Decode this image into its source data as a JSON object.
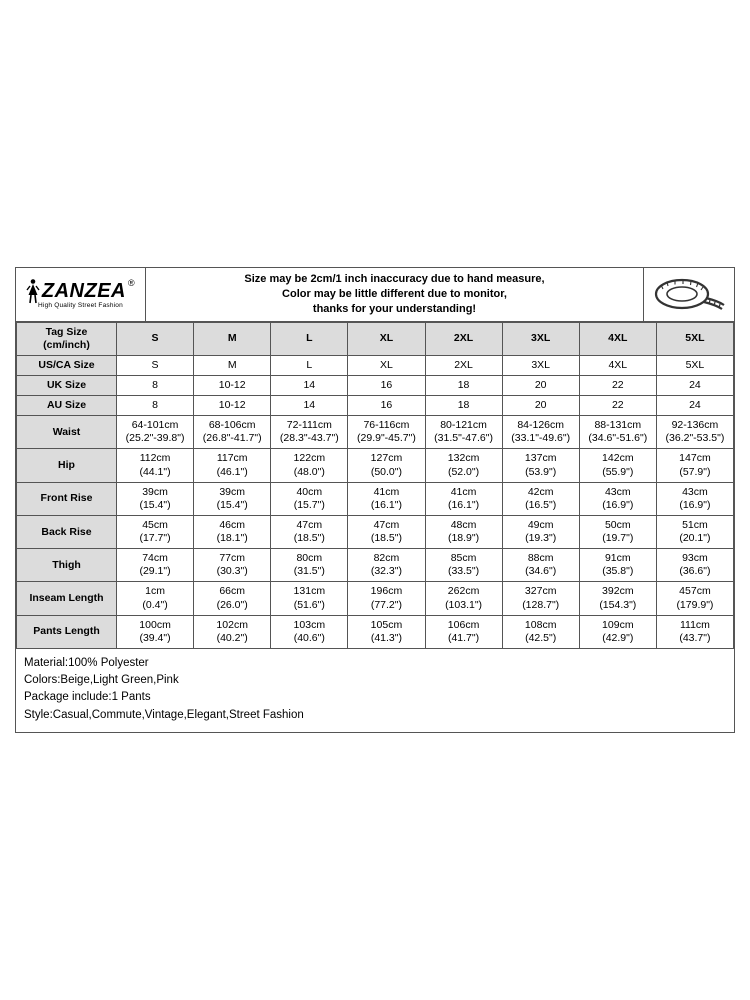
{
  "brand": {
    "name": "ZANZEA",
    "registered": "®",
    "tagline": "High Quality Street Fashion"
  },
  "disclaimer": {
    "line1": "Size may be 2cm/1 inch inaccuracy due to hand measure,",
    "line2": "Color may be little different due to monitor,",
    "line3": "thanks for your understanding!"
  },
  "table": {
    "corner": "Tag Size (cm/inch)",
    "sizes": [
      "S",
      "M",
      "L",
      "XL",
      "2XL",
      "3XL",
      "4XL",
      "5XL"
    ],
    "single_rows": [
      {
        "label": "US/CA Size",
        "values": [
          "S",
          "M",
          "L",
          "XL",
          "2XL",
          "3XL",
          "4XL",
          "5XL"
        ]
      },
      {
        "label": "UK Size",
        "values": [
          "8",
          "10-12",
          "14",
          "16",
          "18",
          "20",
          "22",
          "24"
        ]
      },
      {
        "label": "AU Size",
        "values": [
          "8",
          "10-12",
          "14",
          "16",
          "18",
          "20",
          "22",
          "24"
        ]
      }
    ],
    "dual_rows": [
      {
        "label": "Waist",
        "values": [
          [
            "64-101cm",
            "(25.2\"-39.8\")"
          ],
          [
            "68-106cm",
            "(26.8\"-41.7\")"
          ],
          [
            "72-111cm",
            "(28.3\"-43.7\")"
          ],
          [
            "76-116cm",
            "(29.9\"-45.7\")"
          ],
          [
            "80-121cm",
            "(31.5\"-47.6\")"
          ],
          [
            "84-126cm",
            "(33.1\"-49.6\")"
          ],
          [
            "88-131cm",
            "(34.6\"-51.6\")"
          ],
          [
            "92-136cm",
            "(36.2\"-53.5\")"
          ]
        ]
      },
      {
        "label": "Hip",
        "values": [
          [
            "112cm",
            "(44.1\")"
          ],
          [
            "117cm",
            "(46.1\")"
          ],
          [
            "122cm",
            "(48.0\")"
          ],
          [
            "127cm",
            "(50.0\")"
          ],
          [
            "132cm",
            "(52.0\")"
          ],
          [
            "137cm",
            "(53.9\")"
          ],
          [
            "142cm",
            "(55.9\")"
          ],
          [
            "147cm",
            "(57.9\")"
          ]
        ]
      },
      {
        "label": "Front Rise",
        "values": [
          [
            "39cm",
            "(15.4\")"
          ],
          [
            "39cm",
            "(15.4\")"
          ],
          [
            "40cm",
            "(15.7\")"
          ],
          [
            "41cm",
            "(16.1\")"
          ],
          [
            "41cm",
            "(16.1\")"
          ],
          [
            "42cm",
            "(16.5\")"
          ],
          [
            "43cm",
            "(16.9\")"
          ],
          [
            "43cm",
            "(16.9\")"
          ]
        ]
      },
      {
        "label": "Back Rise",
        "values": [
          [
            "45cm",
            "(17.7\")"
          ],
          [
            "46cm",
            "(18.1\")"
          ],
          [
            "47cm",
            "(18.5\")"
          ],
          [
            "47cm",
            "(18.5\")"
          ],
          [
            "48cm",
            "(18.9\")"
          ],
          [
            "49cm",
            "(19.3\")"
          ],
          [
            "50cm",
            "(19.7\")"
          ],
          [
            "51cm",
            "(20.1\")"
          ]
        ]
      },
      {
        "label": "Thigh",
        "values": [
          [
            "74cm",
            "(29.1\")"
          ],
          [
            "77cm",
            "(30.3\")"
          ],
          [
            "80cm",
            "(31.5\")"
          ],
          [
            "82cm",
            "(32.3\")"
          ],
          [
            "85cm",
            "(33.5\")"
          ],
          [
            "88cm",
            "(34.6\")"
          ],
          [
            "91cm",
            "(35.8\")"
          ],
          [
            "93cm",
            "(36.6\")"
          ]
        ]
      },
      {
        "label": "Inseam Length",
        "values": [
          [
            "1cm",
            "(0.4\")"
          ],
          [
            "66cm",
            "(26.0\")"
          ],
          [
            "131cm",
            "(51.6\")"
          ],
          [
            "196cm",
            "(77.2\")"
          ],
          [
            "262cm",
            "(103.1\")"
          ],
          [
            "327cm",
            "(128.7\")"
          ],
          [
            "392cm",
            "(154.3\")"
          ],
          [
            "457cm",
            "(179.9\")"
          ]
        ]
      },
      {
        "label": "Pants Length",
        "values": [
          [
            "100cm",
            "(39.4\")"
          ],
          [
            "102cm",
            "(40.2\")"
          ],
          [
            "103cm",
            "(40.6\")"
          ],
          [
            "105cm",
            "(41.3\")"
          ],
          [
            "106cm",
            "(41.7\")"
          ],
          [
            "108cm",
            "(42.5\")"
          ],
          [
            "109cm",
            "(42.9\")"
          ],
          [
            "111cm",
            "(43.7\")"
          ]
        ]
      }
    ]
  },
  "footer": [
    "Material:100% Polyester",
    "Colors:Beige,Light Green,Pink",
    "Package include:1 Pants",
    "Style:Casual,Commute,Vintage,Elegant,Street Fashion"
  ],
  "style": {
    "header_bg": "#dcdcdc",
    "border_color": "#555555",
    "font_size_cell": 10.5,
    "font_size_footer": 11.5,
    "font_size_disclaimer": 11
  }
}
